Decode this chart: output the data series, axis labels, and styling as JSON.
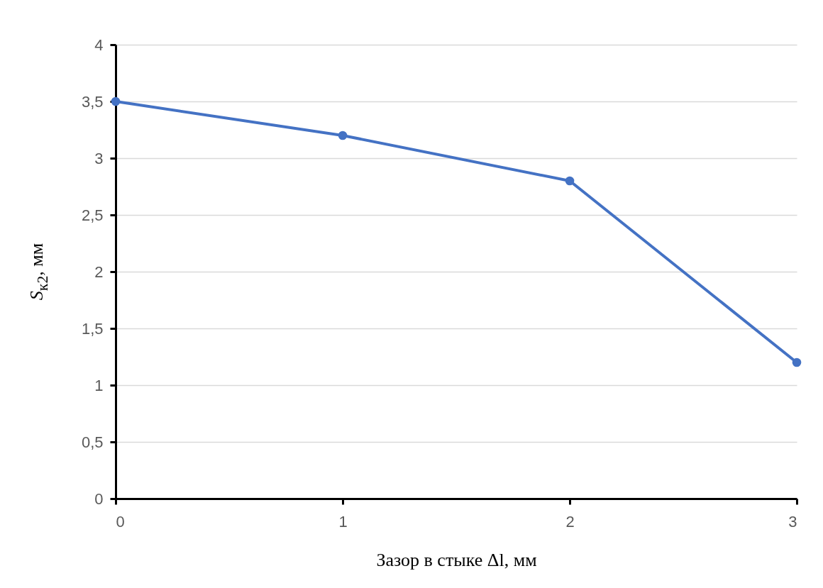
{
  "chart_data": {
    "type": "line",
    "xlabel": "Зазор в стыке Δl, мм",
    "ylabel": "S$_{к2}$, мм",
    "x": [
      0,
      1,
      2,
      3
    ],
    "series": [
      {
        "color": "#4472c4",
        "values": [
          3.5,
          3.2,
          2.8,
          1.2
        ]
      }
    ],
    "xlim": [
      0,
      3
    ],
    "xticks": [
      0,
      1,
      2,
      3
    ],
    "ylim": [
      0,
      4
    ],
    "yticks": [
      0,
      {
        "value": 0.5,
        "label": "0,5"
      },
      1,
      {
        "value": 1.5,
        "label": "1,5"
      },
      2,
      {
        "value": 2.5,
        "label": "2,5"
      },
      3,
      {
        "value": 3.5,
        "label": "3,5"
      },
      4
    ],
    "grid": "y",
    "marker": "circle",
    "line_style": "solid"
  }
}
